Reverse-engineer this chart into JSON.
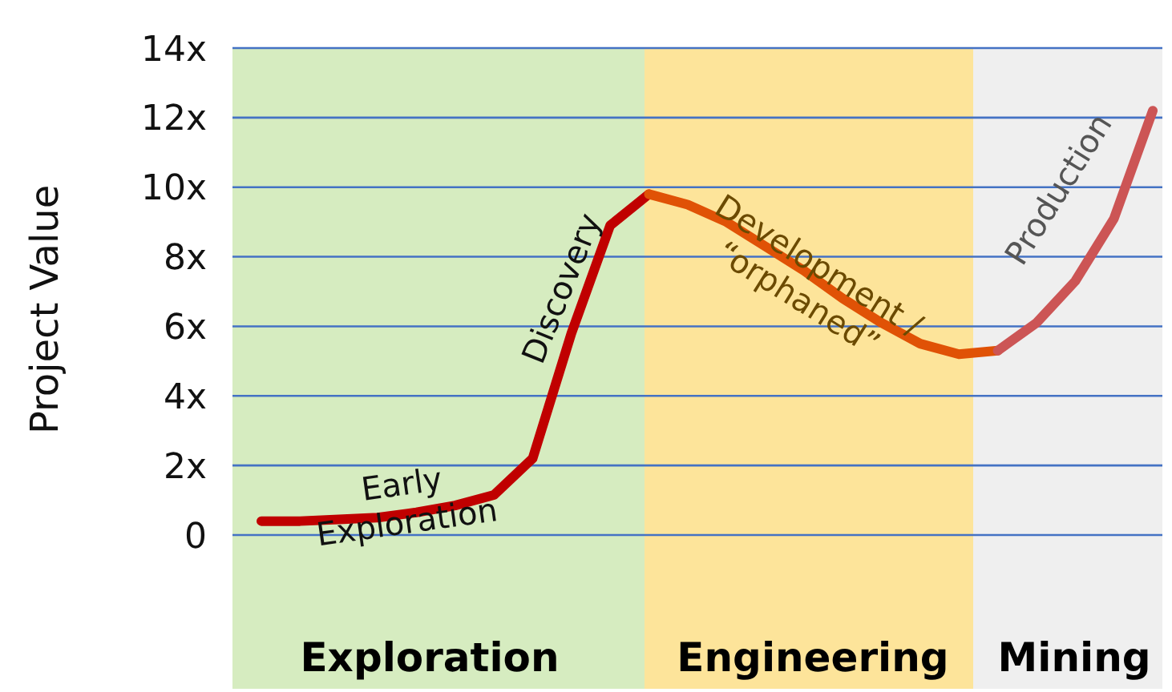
{
  "chart_data": {
    "type": "line",
    "ylabel": "Project Value",
    "categories": [
      null,
      null,
      null,
      null,
      null,
      null,
      null,
      null,
      null,
      null,
      null,
      null,
      null,
      null,
      null,
      null,
      null,
      null,
      null,
      null,
      null,
      null,
      null,
      null
    ],
    "ylim": [
      0,
      14
    ],
    "line_style": "solid",
    "yticks": [
      {
        "value": 0,
        "label": "0"
      },
      {
        "value": 2,
        "label": "2x"
      },
      {
        "value": 4,
        "label": "4x"
      },
      {
        "value": 6,
        "label": "6x"
      },
      {
        "value": 8,
        "label": "8x"
      },
      {
        "value": 10,
        "label": "10x"
      },
      {
        "value": 12,
        "label": "12x"
      },
      {
        "value": 14,
        "label": "14x"
      }
    ],
    "tick_labels": "y",
    "grid": "y",
    "series": [
      {
        "color": "#c00000",
        "values": [
          0.4,
          0.4,
          0.45,
          0.5,
          0.65,
          0.85,
          1.15,
          2.2,
          5.8,
          8.9,
          9.8,
          null,
          null,
          null,
          null,
          null,
          null,
          null,
          null,
          null,
          null,
          null,
          null,
          null
        ]
      },
      {
        "color": "#e05206",
        "values": [
          null,
          null,
          null,
          null,
          null,
          null,
          null,
          null,
          null,
          null,
          9.8,
          9.5,
          9.0,
          8.3,
          7.6,
          6.8,
          6.1,
          5.5,
          5.2,
          5.3,
          null,
          null,
          null,
          null
        ]
      },
      {
        "color": "#cc5555",
        "values": [
          null,
          null,
          null,
          null,
          null,
          null,
          null,
          null,
          null,
          null,
          null,
          null,
          null,
          null,
          null,
          null,
          null,
          null,
          null,
          5.3,
          6.1,
          7.3,
          9.1,
          12.2
        ]
      }
    ],
    "annotations": [
      "Early\nExploration",
      "Discovery",
      "Development /\n“orphaned”",
      "Production",
      "Exploration",
      "Engineering",
      "Mining"
    ]
  }
}
